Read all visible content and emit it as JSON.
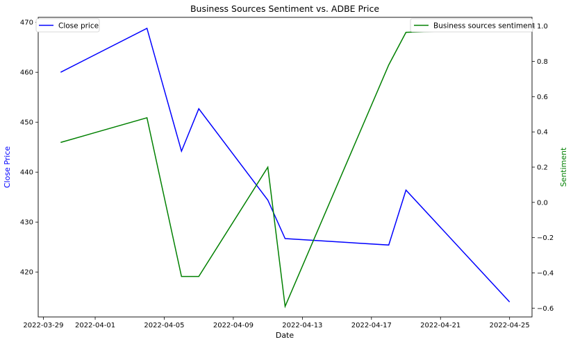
{
  "chart_data": {
    "type": "line",
    "title": "Business Sources Sentiment vs. ADBE Price",
    "xlabel": "Date",
    "x_ticks": [
      "2022-03-29",
      "2022-04-01",
      "2022-04-05",
      "2022-04-09",
      "2022-04-13",
      "2022-04-17",
      "2022-04-21",
      "2022-04-25"
    ],
    "x_range": [
      "2022-03-29",
      "2022-04-25"
    ],
    "grid": false,
    "left_axis": {
      "label": "Close Price",
      "label_color": "#0000ff",
      "ylim": [
        411,
        471
      ],
      "ticks": [
        420,
        430,
        440,
        450,
        460,
        470
      ]
    },
    "right_axis": {
      "label": "Sentiment",
      "label_color": "#008000",
      "ylim": [
        -0.65,
        1.05
      ],
      "ticks": [
        -0.6,
        -0.4,
        -0.2,
        0.0,
        0.2,
        0.4,
        0.6,
        0.8,
        1.0
      ],
      "tick_labels": [
        "−0.6",
        "−0.4",
        "−0.2",
        "0.0",
        "0.2",
        "0.4",
        "0.6",
        "0.8",
        "1.0"
      ]
    },
    "series": [
      {
        "name": "Close price",
        "axis": "left",
        "color": "#0000ff",
        "legend": "top-left",
        "x": [
          "2022-03-30",
          "2022-04-04",
          "2022-04-06",
          "2022-04-07",
          "2022-04-11",
          "2022-04-12",
          "2022-04-18",
          "2022-04-19",
          "2022-04-25"
        ],
        "values": [
          460.0,
          468.8,
          444.2,
          452.7,
          434.4,
          426.7,
          425.4,
          436.4,
          414.0
        ]
      },
      {
        "name": "Business sources sentiment",
        "axis": "right",
        "color": "#008000",
        "legend": "top-right",
        "x": [
          "2022-03-30",
          "2022-04-04",
          "2022-04-06",
          "2022-04-07",
          "2022-04-11",
          "2022-04-12",
          "2022-04-18",
          "2022-04-19",
          "2022-04-25"
        ],
        "values": [
          0.34,
          0.48,
          -0.42,
          -0.42,
          0.2,
          -0.59,
          0.78,
          0.965,
          0.985
        ]
      }
    ]
  }
}
